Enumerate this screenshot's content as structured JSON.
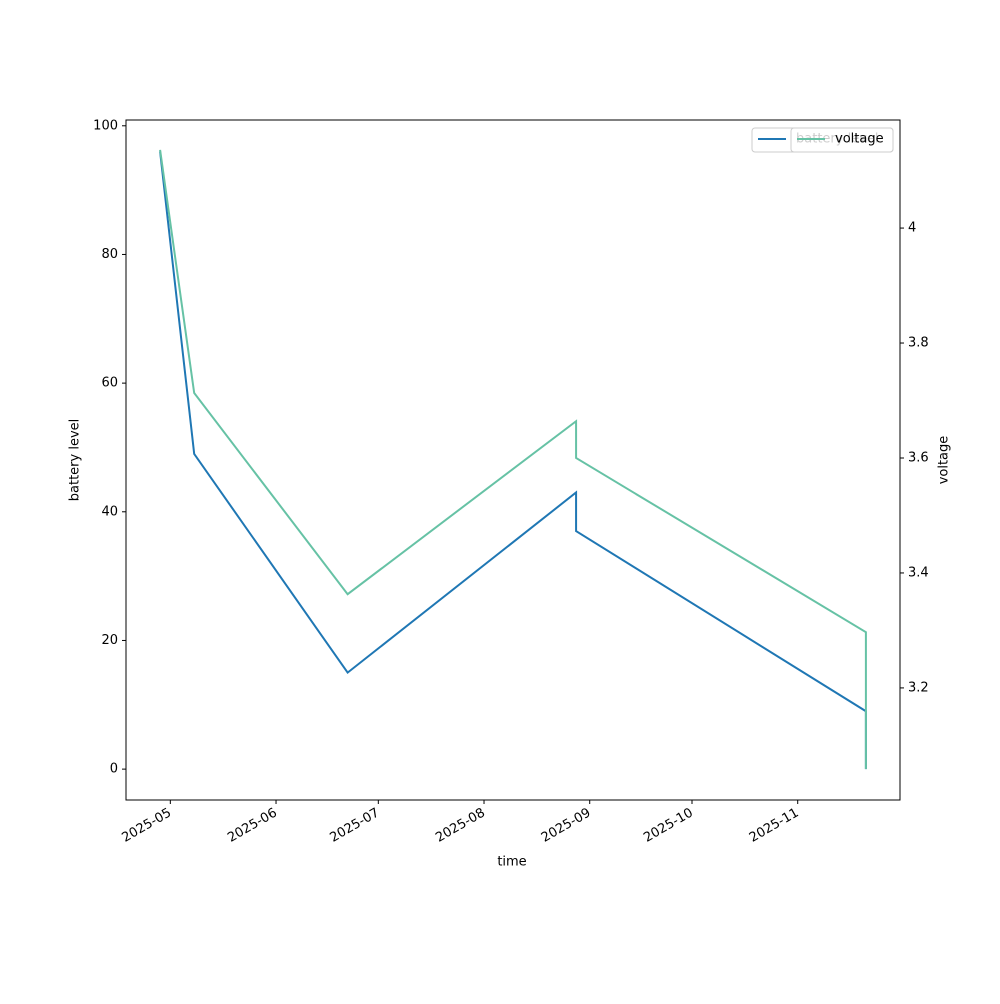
{
  "chart_data": {
    "type": "line",
    "x": [
      "2025-04-28",
      "2025-05-08",
      "2025-06-22",
      "2025-08-28",
      "2025-08-28",
      "2025-11-21",
      "2025-11-21"
    ],
    "series": [
      {
        "name": "battery level",
        "color": "#1f77b4",
        "values": [
          96,
          49,
          15,
          43,
          37,
          9,
          0
        ]
      },
      {
        "name": "voltage",
        "color": "#66c2a5",
        "axis": "y2",
        "values": [
          4.136,
          3.713,
          3.363,
          3.664,
          3.6,
          3.297,
          3.059
        ]
      }
    ],
    "xlabel": "time",
    "ylabel": "battery level",
    "y2label": "voltage",
    "xlim": [
      "2025-04-18",
      "2025-12-01"
    ],
    "xticks": [
      "2025-05",
      "2025-06",
      "2025-07",
      "2025-08",
      "2025-09",
      "2025-10",
      "2025-11"
    ],
    "ylim": [
      -4.8,
      100.9
    ],
    "yticks": [
      0,
      20,
      40,
      60,
      80,
      100
    ],
    "y2lim": [
      3.005,
      4.188
    ],
    "y2ticks": [
      3.2,
      3.4,
      3.6,
      3.8,
      4.0
    ],
    "legend": "upper right"
  }
}
